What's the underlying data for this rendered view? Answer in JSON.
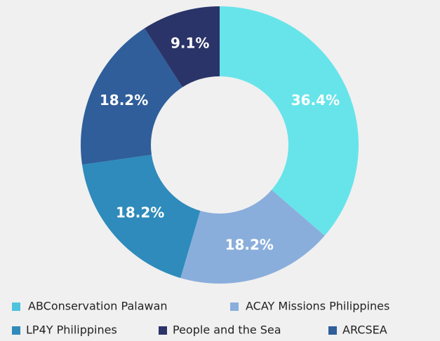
{
  "chart_data": {
    "type": "donut",
    "categories": [
      "ABConservation Palawan",
      "ACAY Missions Philippines",
      "LP4Y Philippines",
      "ARCSEA",
      "People and the Sea"
    ],
    "values": [
      36.4,
      18.2,
      18.2,
      18.2,
      9.1
    ],
    "value_labels": [
      "36.4%",
      "18.2%",
      "18.2%",
      "18.2%",
      "9.1%"
    ],
    "colors": [
      "#67e4ea",
      "#8aaedb",
      "#2e8bbb",
      "#2f5e9a",
      "#2b3468"
    ],
    "legend_colors": [
      "#4ec3dd",
      "#8aaedb",
      "#2e8bbb",
      "#2f5e9a",
      "#2b3468"
    ]
  }
}
